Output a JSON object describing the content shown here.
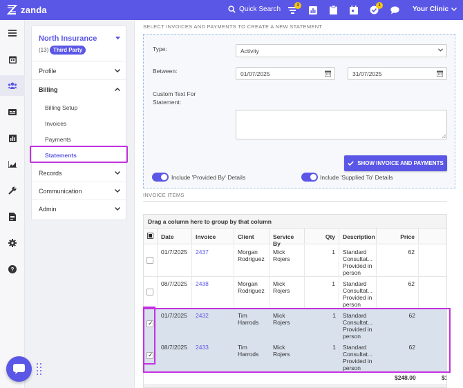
{
  "brand": {
    "name": "zanda"
  },
  "topbar": {
    "quick_search": "Quick Search",
    "badges": {
      "list": "3",
      "tasks": "1"
    },
    "clinic": "Your Clinic"
  },
  "sidebar": {
    "insurer": {
      "name": "North Insurance",
      "count": "(13)",
      "type": "Third Party"
    },
    "items": [
      {
        "label": "Profile"
      },
      {
        "label": "Billing"
      },
      {
        "label": "Records"
      },
      {
        "label": "Communication"
      },
      {
        "label": "Admin"
      }
    ],
    "billing_sub": [
      {
        "label": "Billing Setup"
      },
      {
        "label": "Invoices"
      },
      {
        "label": "Payments"
      },
      {
        "label": "Statements"
      }
    ]
  },
  "form": {
    "section_title": "SELECT INVOICES AND PAYMENTS TO CREATE A NEW STATEMENT",
    "type_label": "Type:",
    "type_value": "Activity",
    "between_label": "Between:",
    "date_from": "01/07/2025",
    "date_to": "31/07/2025",
    "custom_text_label": "Custom Text For Statement:",
    "show_button": "SHOW INVOICE AND PAYMENTS",
    "toggle_provided": "Include 'Provided By' Details",
    "toggle_supplied": "Include 'Supplied To' Details"
  },
  "invoice_items": {
    "section_title": "INVOICE ITEMS",
    "group_hint": "Drag a column here to group by that column",
    "columns": [
      "Date",
      "Invoice",
      "Client",
      "Service By",
      "Qty",
      "Description",
      "Price"
    ],
    "rows": [
      {
        "date": "01/7/2025",
        "invoice": "2437",
        "client": "Morgan Rodriguez",
        "service_by": "Mick Rojers",
        "qty": "1",
        "description": "Standard Consultat... Provided in person",
        "price": "62",
        "checked": false
      },
      {
        "date": "08/7/2025",
        "invoice": "2438",
        "client": "Morgan Rodriguez",
        "service_by": "Mick Rojers",
        "qty": "1",
        "description": "Standard Consultat... Provided in person",
        "price": "62",
        "checked": false
      },
      {
        "date": "01/7/2025",
        "invoice": "2432",
        "client": "Tim Harrods",
        "service_by": "Mick Rojers",
        "qty": "1",
        "description": "Standard Consultat... Provided in person",
        "price": "62",
        "checked": true
      },
      {
        "date": "08/7/2025",
        "invoice": "2433",
        "client": "Tim Harrods",
        "service_by": "Mick Rojers",
        "qty": "1",
        "description": "Standard Consultat... Provided in person",
        "price": "62",
        "checked": true
      }
    ],
    "total": "$248.00",
    "total_next": "$1"
  },
  "colors": {
    "accent": "#5b57e6",
    "highlight": "#c431e0",
    "selected_row": "#d9e1ec",
    "badge": "#f5c518"
  }
}
